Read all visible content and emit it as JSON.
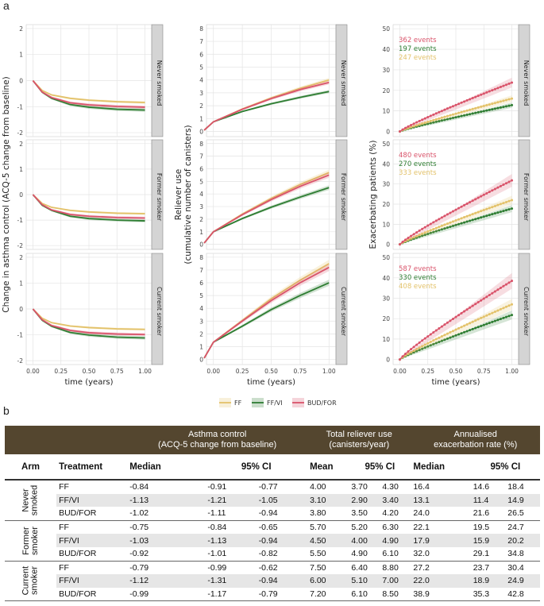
{
  "panel_a_label": "a",
  "panel_b_label": "b",
  "strata": [
    "Never smoked",
    "Former smoker",
    "Current smoker"
  ],
  "colors": {
    "FF": "#e3c26a",
    "FF/VI": "#2e7d32",
    "BUD/FOR": "#d9536a"
  },
  "chart_data": [
    {
      "type": "line",
      "title": "Asthma control",
      "ylabel": "Change in asthma control (ACQ-5 change from baseline)",
      "xlabel": "time (years)",
      "x_ticks": [
        "0.00",
        "0.25",
        "0.50",
        "0.75",
        "1.00"
      ],
      "ylim": [
        -2,
        2
      ],
      "y_ticks": [
        "2",
        "1",
        "0",
        "-1",
        "-2"
      ],
      "facets": [
        {
          "stratum": "Never smoked",
          "x": [
            0,
            0.083,
            0.167,
            0.333,
            0.5,
            0.75,
            1.0
          ],
          "series": [
            {
              "name": "FF",
              "values": [
                0,
                -0.38,
                -0.55,
                -0.68,
                -0.75,
                -0.81,
                -0.84
              ]
            },
            {
              "name": "FF/VI",
              "values": [
                0,
                -0.45,
                -0.68,
                -0.92,
                -1.02,
                -1.1,
                -1.13
              ]
            },
            {
              "name": "BUD/FOR",
              "values": [
                0,
                -0.44,
                -0.65,
                -0.85,
                -0.93,
                -0.99,
                -1.02
              ]
            }
          ]
        },
        {
          "stratum": "Former smoker",
          "x": [
            0,
            0.083,
            0.167,
            0.333,
            0.5,
            0.75,
            1.0
          ],
          "series": [
            {
              "name": "FF",
              "values": [
                0,
                -0.35,
                -0.5,
                -0.62,
                -0.68,
                -0.73,
                -0.75
              ]
            },
            {
              "name": "FF/VI",
              "values": [
                0,
                -0.42,
                -0.62,
                -0.85,
                -0.94,
                -1.0,
                -1.03
              ]
            },
            {
              "name": "BUD/FOR",
              "values": [
                0,
                -0.4,
                -0.6,
                -0.78,
                -0.85,
                -0.9,
                -0.92
              ]
            }
          ]
        },
        {
          "stratum": "Current smoker",
          "x": [
            0,
            0.083,
            0.167,
            0.333,
            0.5,
            0.75,
            1.0
          ],
          "series": [
            {
              "name": "FF",
              "values": [
                0,
                -0.36,
                -0.53,
                -0.66,
                -0.72,
                -0.77,
                -0.79
              ]
            },
            {
              "name": "FF/VI",
              "values": [
                0,
                -0.44,
                -0.67,
                -0.91,
                -1.01,
                -1.09,
                -1.12
              ]
            },
            {
              "name": "BUD/FOR",
              "values": [
                0,
                -0.42,
                -0.64,
                -0.83,
                -0.92,
                -0.97,
                -0.99
              ]
            }
          ]
        }
      ]
    },
    {
      "type": "line",
      "title": "Reliever use",
      "ylabel": "Reliever use (cumulative number of canisters)",
      "xlabel": "time (years)",
      "x_ticks": [
        "0.00",
        "0.25",
        "0.50",
        "0.75",
        "1.00"
      ],
      "facets": [
        {
          "stratum": "Never smoked",
          "ylim": [
            0,
            8
          ],
          "y_ticks": [
            "0",
            "1",
            "2",
            "3",
            "4",
            "5",
            "6",
            "7",
            "8"
          ],
          "x": [
            -0.08,
            0,
            0.25,
            0.5,
            0.75,
            1.0
          ],
          "series": [
            {
              "name": "FF",
              "values": [
                0.1,
                0.75,
                1.75,
                2.6,
                3.35,
                4.0
              ]
            },
            {
              "name": "FF/VI",
              "values": [
                0.1,
                0.75,
                1.55,
                2.15,
                2.65,
                3.1
              ]
            },
            {
              "name": "BUD/FOR",
              "values": [
                0.1,
                0.75,
                1.72,
                2.55,
                3.25,
                3.8
              ]
            }
          ]
        },
        {
          "stratum": "Former smoker",
          "ylim": [
            0,
            8
          ],
          "y_ticks": [
            "0",
            "1",
            "2",
            "3",
            "4",
            "5",
            "6",
            "7",
            "8"
          ],
          "x": [
            -0.08,
            0,
            0.25,
            0.5,
            0.75,
            1.0
          ],
          "series": [
            {
              "name": "FF",
              "values": [
                0.1,
                1.0,
                2.4,
                3.65,
                4.75,
                5.7
              ]
            },
            {
              "name": "FF/VI",
              "values": [
                0.1,
                1.0,
                2.05,
                2.95,
                3.75,
                4.5
              ]
            },
            {
              "name": "BUD/FOR",
              "values": [
                0.1,
                1.0,
                2.35,
                3.55,
                4.6,
                5.5
              ]
            }
          ]
        },
        {
          "stratum": "Current smoker",
          "ylim": [
            0,
            8
          ],
          "y_ticks": [
            "0",
            "1",
            "2",
            "3",
            "4",
            "5",
            "6",
            "7",
            "8"
          ],
          "x": [
            -0.08,
            0,
            0.25,
            0.5,
            0.75,
            1.0
          ],
          "series": [
            {
              "name": "FF",
              "values": [
                0.1,
                1.35,
                3.05,
                4.75,
                6.2,
                7.5
              ]
            },
            {
              "name": "FF/VI",
              "values": [
                0.1,
                1.35,
                2.6,
                3.9,
                5.0,
                6.0
              ]
            },
            {
              "name": "BUD/FOR",
              "values": [
                0.1,
                1.35,
                3.0,
                4.6,
                6.0,
                7.2
              ]
            }
          ]
        }
      ]
    },
    {
      "type": "line",
      "title": "Exacerbations",
      "ylabel": "Exacerbating patients (%)",
      "xlabel": "time (years)",
      "x_ticks": [
        "0.00",
        "0.25",
        "0.50",
        "0.75",
        "1.00"
      ],
      "facets": [
        {
          "stratum": "Never smoked",
          "ylim": [
            0,
            50
          ],
          "y_ticks": [
            "0",
            "10",
            "20",
            "30",
            "40",
            "50"
          ],
          "events": [
            {
              "text": "362 events",
              "series": "BUD/FOR"
            },
            {
              "text": "197 events",
              "series": "FF/VI"
            },
            {
              "text": "247 events",
              "series": "FF"
            }
          ],
          "series": [
            {
              "name": "FF",
              "end": 16.0
            },
            {
              "name": "FF/VI",
              "end": 12.8
            },
            {
              "name": "BUD/FOR",
              "end": 23.8
            }
          ]
        },
        {
          "stratum": "Former smoker",
          "ylim": [
            0,
            50
          ],
          "y_ticks": [
            "0",
            "10",
            "20",
            "30",
            "40",
            "50"
          ],
          "events": [
            {
              "text": "480 events",
              "series": "BUD/FOR"
            },
            {
              "text": "270 events",
              "series": "FF/VI"
            },
            {
              "text": "333 events",
              "series": "FF"
            }
          ],
          "series": [
            {
              "name": "FF",
              "end": 22.0
            },
            {
              "name": "FF/VI",
              "end": 17.8
            },
            {
              "name": "BUD/FOR",
              "end": 31.8
            }
          ]
        },
        {
          "stratum": "Current smoker",
          "ylim": [
            0,
            50
          ],
          "y_ticks": [
            "0",
            "10",
            "20",
            "30",
            "40",
            "50"
          ],
          "events": [
            {
              "text": "587 events",
              "series": "BUD/FOR"
            },
            {
              "text": "330 events",
              "series": "FF/VI"
            },
            {
              "text": "408 events",
              "series": "FF"
            }
          ],
          "series": [
            {
              "name": "FF",
              "end": 27.0
            },
            {
              "name": "FF/VI",
              "end": 21.8
            },
            {
              "name": "BUD/FOR",
              "end": 38.5
            }
          ]
        }
      ]
    }
  ],
  "legend": [
    "FF",
    "FF/VI",
    "BUD/FOR"
  ],
  "table": {
    "group_headers": [
      "Asthma control\n(ACQ-5 change from baseline)",
      "Total reliever use\n(canisters/year)",
      "Annualised\nexacerbation rate (%)"
    ],
    "columns": [
      "Arm",
      "Treatment",
      "Median",
      "95% CI",
      "Mean",
      "95% CI",
      "Median",
      "95% CI"
    ],
    "groups": [
      {
        "arm": "Never\nsmoked",
        "rows": [
          {
            "treatment": "FF",
            "v": [
              "-0.84",
              "-0.91",
              "-0.77",
              "4.00",
              "3.70",
              "4.30",
              "16.4",
              "14.6",
              "18.4"
            ]
          },
          {
            "treatment": "FF/VI",
            "v": [
              "-1.13",
              "-1.21",
              "-1.05",
              "3.10",
              "2.90",
              "3.40",
              "13.1",
              "11.4",
              "14.9"
            ]
          },
          {
            "treatment": "BUD/FOR",
            "v": [
              "-1.02",
              "-1.11",
              "-0.94",
              "3.80",
              "3.50",
              "4.20",
              "24.0",
              "21.6",
              "26.5"
            ]
          }
        ]
      },
      {
        "arm": "Former\nsmoker",
        "rows": [
          {
            "treatment": "FF",
            "v": [
              "-0.75",
              "-0.84",
              "-0.65",
              "5.70",
              "5.20",
              "6.30",
              "22.1",
              "19.5",
              "24.7"
            ]
          },
          {
            "treatment": "FF/VI",
            "v": [
              "-1.03",
              "-1.13",
              "-0.94",
              "4.50",
              "4.00",
              "4.90",
              "17.9",
              "15.9",
              "20.2"
            ]
          },
          {
            "treatment": "BUD/FOR",
            "v": [
              "-0.92",
              "-1.01",
              "-0.82",
              "5.50",
              "4.90",
              "6.10",
              "32.0",
              "29.1",
              "34.8"
            ]
          }
        ]
      },
      {
        "arm": "Current\nsmoker",
        "rows": [
          {
            "treatment": "FF",
            "v": [
              "-0.79",
              "-0.99",
              "-0.62",
              "7.50",
              "6.40",
              "8.80",
              "27.2",
              "23.7",
              "30.4"
            ]
          },
          {
            "treatment": "FF/VI",
            "v": [
              "-1.12",
              "-1.31",
              "-0.94",
              "6.00",
              "5.10",
              "7.00",
              "22.0",
              "18.9",
              "24.9"
            ]
          },
          {
            "treatment": "BUD/FOR",
            "v": [
              "-0.99",
              "-1.17",
              "-0.79",
              "7.20",
              "6.10",
              "8.50",
              "38.9",
              "35.3",
              "42.8"
            ]
          }
        ]
      }
    ]
  }
}
